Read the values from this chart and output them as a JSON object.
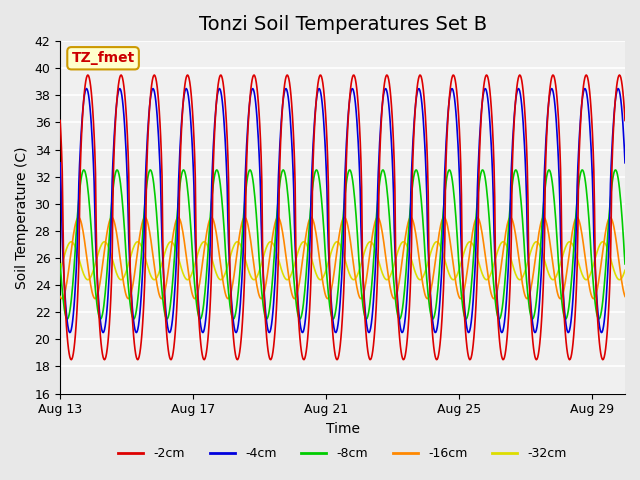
{
  "title": "Tonzi Soil Temperatures Set B",
  "xlabel": "Time",
  "ylabel": "Soil Temperature (C)",
  "xlim_days": [
    0,
    17
  ],
  "ylim": [
    16,
    42
  ],
  "yticks": [
    16,
    18,
    20,
    22,
    24,
    26,
    28,
    30,
    32,
    34,
    36,
    38,
    40,
    42
  ],
  "xtick_positions": [
    0,
    4,
    8,
    12,
    16
  ],
  "xtick_labels": [
    "Aug 13",
    "Aug 17",
    "Aug 21",
    "Aug 25",
    "Aug 29"
  ],
  "annotation_text": "TZ_fmet",
  "annotation_color": "#cc0000",
  "annotation_bg": "#ffffcc",
  "annotation_border": "#cc9900",
  "series": {
    "2cm": {
      "color": "#dd0000",
      "amplitude": 21.0,
      "base": 29.0,
      "phase": 0.0,
      "sharpness": 1.8
    },
    "4cm": {
      "color": "#0000dd",
      "amplitude": 18.0,
      "base": 29.5,
      "phase": 0.04,
      "sharpness": 1.4
    },
    "8cm": {
      "color": "#00cc00",
      "amplitude": 11.0,
      "base": 27.0,
      "phase": 0.12,
      "sharpness": 1.1
    },
    "16cm": {
      "color": "#ff8800",
      "amplitude": 6.0,
      "base": 26.0,
      "phase": 0.28,
      "sharpness": 1.0
    },
    "32cm": {
      "color": "#dddd00",
      "amplitude": 2.8,
      "base": 25.8,
      "phase": 0.5,
      "sharpness": 1.0
    }
  },
  "legend_labels": [
    "-2cm",
    "-4cm",
    "-8cm",
    "-16cm",
    "-32cm"
  ],
  "legend_colors": [
    "#dd0000",
    "#0000dd",
    "#00cc00",
    "#ff8800",
    "#dddd00"
  ],
  "bg_color": "#e8e8e8",
  "plot_bg_color": "#f0f0f0",
  "grid_color": "#ffffff",
  "title_fontsize": 14,
  "label_fontsize": 10,
  "tick_fontsize": 9,
  "legend_fontsize": 9
}
